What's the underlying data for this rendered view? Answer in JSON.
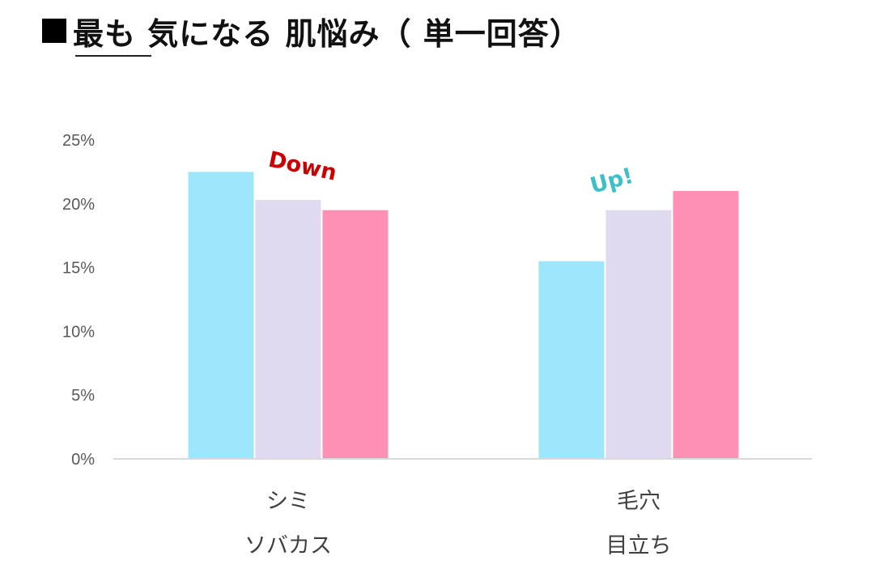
{
  "title": "最も 気になる 肌悩み（ 単一回答）",
  "chart_data": {
    "type": "bar",
    "categories": [
      [
        "シミ",
        "ソバカス"
      ],
      [
        "毛穴",
        "目立ち"
      ]
    ],
    "series": [
      {
        "color": "#9de6fb",
        "values": [
          22.5,
          15.5
        ]
      },
      {
        "color": "#e0daf0",
        "values": [
          20.3,
          19.5
        ]
      },
      {
        "color": "#fd90b4",
        "values": [
          19.5,
          21.0
        ]
      }
    ],
    "ylim": [
      0,
      25
    ],
    "yticks": [
      "0%",
      "5%",
      "10%",
      "15%",
      "20%",
      "25%"
    ],
    "annotations": [
      {
        "text": "Down",
        "color": "#cc0000",
        "category": 0
      },
      {
        "text": "Up!",
        "color": "#3dbfc9",
        "category": 1
      }
    ],
    "grid": false,
    "legend": "none"
  }
}
